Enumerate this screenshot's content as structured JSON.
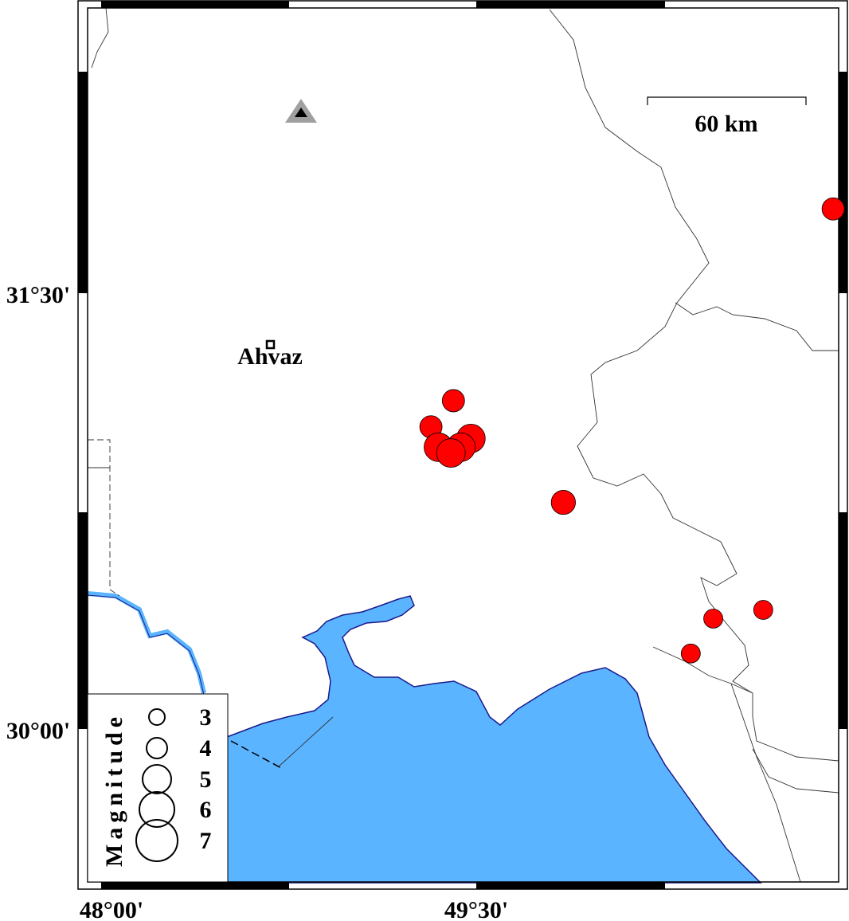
{
  "map": {
    "axes": {
      "x_ticks": [
        {
          "label": "48°00'",
          "lon": 48.0
        },
        {
          "label": "49°30'",
          "lon": 49.5
        }
      ],
      "y_ticks": [
        {
          "label": "31°30'",
          "lat": 31.5
        },
        {
          "label": "30°00'",
          "lat": 30.0
        }
      ]
    },
    "colors": {
      "sea": "#5ab4ff",
      "coast": "#1a1a8c",
      "event": "#ff0000",
      "station": "#000000",
      "station_halo": "#a0a0a0"
    },
    "scale_bar": {
      "label": "60 km"
    },
    "city": {
      "name": "Ahvaz",
      "lon": 48.68,
      "lat": 31.33
    },
    "station": {
      "lon": 48.8,
      "lat": 32.1,
      "icon": "triangle-icon"
    },
    "events": [
      {
        "lon": 50.93,
        "lat": 31.79,
        "mag": 4
      },
      {
        "lon": 49.41,
        "lat": 31.13,
        "mag": 4
      },
      {
        "lon": 49.32,
        "lat": 31.04,
        "mag": 4
      },
      {
        "lon": 49.48,
        "lat": 31.0,
        "mag": 5
      },
      {
        "lon": 49.35,
        "lat": 30.97,
        "mag": 5
      },
      {
        "lon": 49.44,
        "lat": 30.97,
        "mag": 5
      },
      {
        "lon": 49.4,
        "lat": 30.95,
        "mag": 5
      },
      {
        "lon": 49.85,
        "lat": 30.78,
        "mag": 4.3
      },
      {
        "lon": 50.45,
        "lat": 30.38,
        "mag": 3.5
      },
      {
        "lon": 50.65,
        "lat": 30.41,
        "mag": 3.5
      },
      {
        "lon": 50.36,
        "lat": 30.26,
        "mag": 3.5
      }
    ],
    "legend": {
      "title": "Magnitude",
      "items": [
        {
          "label": "3",
          "mag": 3
        },
        {
          "label": "4",
          "mag": 4
        },
        {
          "label": "5",
          "mag": 5
        },
        {
          "label": "6",
          "mag": 6
        },
        {
          "label": "7",
          "mag": 7
        }
      ]
    }
  }
}
